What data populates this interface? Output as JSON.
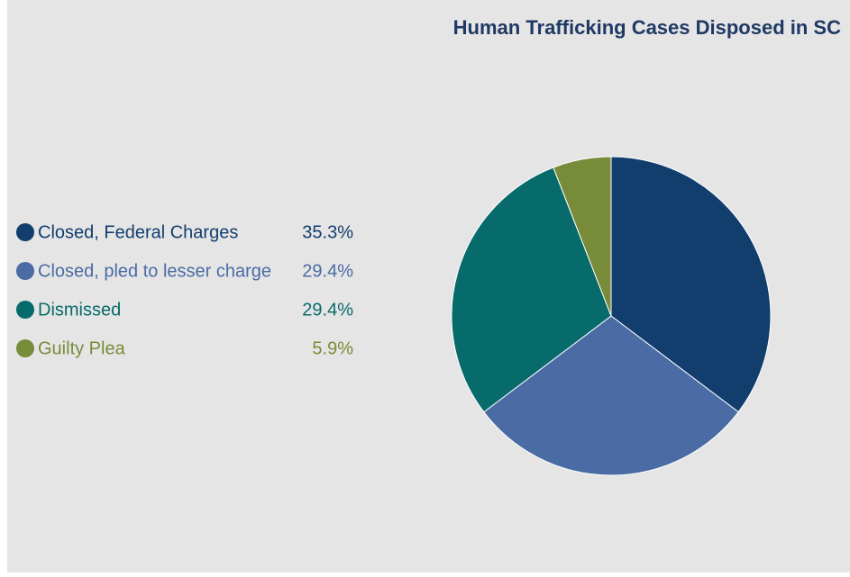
{
  "chart_data": {
    "type": "pie",
    "title": "Human Trafficking Cases Disposed in SC",
    "categories": [
      "Closed, Federal Charges",
      "Closed, pled to lesser charge",
      "Dismissed",
      "Guilty Plea"
    ],
    "values": [
      35.3,
      29.4,
      29.4,
      5.9
    ],
    "value_labels": [
      "35.3%",
      "29.4%",
      "29.4%",
      "5.9%"
    ],
    "colors": [
      "#123e6e",
      "#4a6ba3",
      "#086b6b",
      "#788b38"
    ],
    "legend": "left"
  }
}
